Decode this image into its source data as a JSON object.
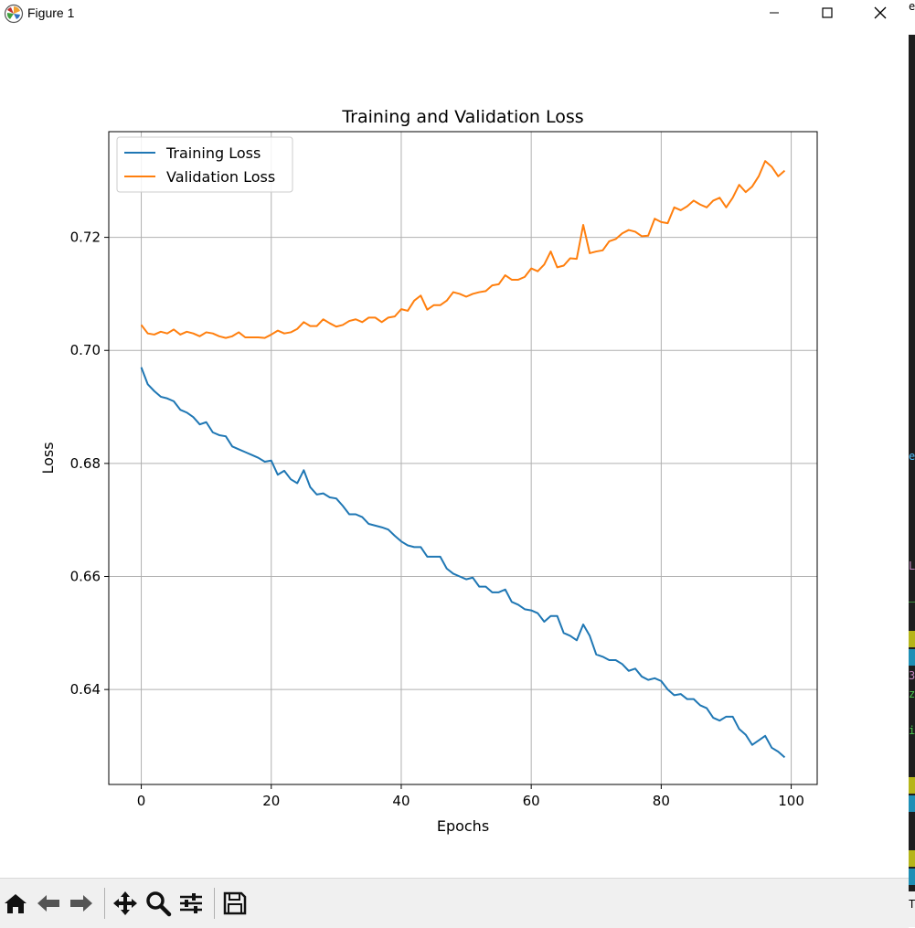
{
  "window": {
    "title": "Figure 1"
  },
  "toolbar": {
    "tools": [
      "home-icon",
      "back-arrow-icon",
      "forward-arrow-icon",
      "pan-icon",
      "zoom-icon",
      "configure-subplots-icon",
      "save-icon"
    ]
  },
  "colors": {
    "training": "#1f77b4",
    "validation": "#ff7f0e",
    "grid": "#b0b0b0"
  },
  "side_strip": {
    "glyphs": [
      "e",
      "e",
      "L",
      "3",
      "z",
      "i",
      "T"
    ]
  },
  "chart_data": {
    "type": "line",
    "title": "Training and Validation Loss",
    "xlabel": "Epochs",
    "ylabel": "Loss",
    "xlim": [
      -5,
      104
    ],
    "ylim": [
      0.6232,
      0.7387
    ],
    "xticks": [
      0,
      20,
      40,
      60,
      80,
      100
    ],
    "yticks": [
      0.64,
      0.66,
      0.68,
      0.7,
      0.72
    ],
    "xtick_labels": [
      "0",
      "20",
      "40",
      "60",
      "80",
      "100"
    ],
    "ytick_labels": [
      "0.64",
      "0.66",
      "0.68",
      "0.70",
      "0.72"
    ],
    "grid": true,
    "legend": "top-left",
    "series": [
      {
        "name": "Training Loss",
        "x": [
          0,
          1,
          2,
          3,
          4,
          5,
          6,
          7,
          8,
          9,
          10,
          11,
          12,
          13,
          14,
          15,
          16,
          17,
          18,
          19,
          20,
          21,
          22,
          23,
          24,
          25,
          26,
          27,
          28,
          29,
          30,
          31,
          32,
          33,
          34,
          35,
          36,
          37,
          38,
          39,
          40,
          41,
          42,
          43,
          44,
          45,
          46,
          47,
          48,
          49,
          50,
          51,
          52,
          53,
          54,
          55,
          56,
          57,
          58,
          59,
          60,
          61,
          62,
          63,
          64,
          65,
          66,
          67,
          68,
          69,
          70,
          71,
          72,
          73,
          74,
          75,
          76,
          77,
          78,
          79,
          80,
          81,
          82,
          83,
          84,
          85,
          86,
          87,
          88,
          89,
          90,
          91,
          92,
          93,
          94,
          95,
          96,
          97,
          98,
          99
        ],
        "values": [
          0.697,
          0.694,
          0.6928,
          0.6918,
          0.6915,
          0.691,
          0.6895,
          0.689,
          0.6882,
          0.6869,
          0.6873,
          0.6855,
          0.685,
          0.6848,
          0.683,
          0.6825,
          0.682,
          0.6815,
          0.681,
          0.6803,
          0.6805,
          0.678,
          0.6787,
          0.6772,
          0.6765,
          0.6788,
          0.6758,
          0.6745,
          0.6747,
          0.674,
          0.6738,
          0.6725,
          0.671,
          0.671,
          0.6705,
          0.6693,
          0.669,
          0.6687,
          0.6683,
          0.6672,
          0.6662,
          0.6655,
          0.6652,
          0.6652,
          0.6635,
          0.6635,
          0.6635,
          0.6614,
          0.6605,
          0.66,
          0.6595,
          0.6598,
          0.6582,
          0.6582,
          0.6572,
          0.6572,
          0.6577,
          0.6555,
          0.655,
          0.6542,
          0.654,
          0.6535,
          0.652,
          0.653,
          0.653,
          0.65,
          0.6495,
          0.6487,
          0.6515,
          0.6495,
          0.6462,
          0.6458,
          0.6452,
          0.6452,
          0.6445,
          0.6433,
          0.6437,
          0.6423,
          0.6417,
          0.642,
          0.6415,
          0.64,
          0.639,
          0.6392,
          0.6383,
          0.6383,
          0.6372,
          0.6367,
          0.635,
          0.6345,
          0.6352,
          0.6352,
          0.633,
          0.632,
          0.6302,
          0.631,
          0.6318,
          0.6297,
          0.629,
          0.628
        ]
      },
      {
        "name": "Validation Loss",
        "x": [
          0,
          1,
          2,
          3,
          4,
          5,
          6,
          7,
          8,
          9,
          10,
          11,
          12,
          13,
          14,
          15,
          16,
          17,
          18,
          19,
          20,
          21,
          22,
          23,
          24,
          25,
          26,
          27,
          28,
          29,
          30,
          31,
          32,
          33,
          34,
          35,
          36,
          37,
          38,
          39,
          40,
          41,
          42,
          43,
          44,
          45,
          46,
          47,
          48,
          49,
          50,
          51,
          52,
          53,
          54,
          55,
          56,
          57,
          58,
          59,
          60,
          61,
          62,
          63,
          64,
          65,
          66,
          67,
          68,
          69,
          70,
          71,
          72,
          73,
          74,
          75,
          76,
          77,
          78,
          79,
          80,
          81,
          82,
          83,
          84,
          85,
          86,
          87,
          88,
          89,
          90,
          91,
          92,
          93,
          94,
          95,
          96,
          97,
          98,
          99
        ],
        "values": [
          0.7045,
          0.703,
          0.7028,
          0.7033,
          0.703,
          0.7037,
          0.7028,
          0.7033,
          0.703,
          0.7025,
          0.7032,
          0.703,
          0.7025,
          0.7022,
          0.7025,
          0.7032,
          0.7023,
          0.7023,
          0.7023,
          0.7022,
          0.7028,
          0.7035,
          0.703,
          0.7032,
          0.7038,
          0.705,
          0.7043,
          0.7043,
          0.7055,
          0.7048,
          0.7042,
          0.7045,
          0.7052,
          0.7055,
          0.705,
          0.7058,
          0.7058,
          0.705,
          0.7058,
          0.706,
          0.7073,
          0.707,
          0.7088,
          0.7097,
          0.7072,
          0.708,
          0.708,
          0.7088,
          0.7103,
          0.71,
          0.7095,
          0.71,
          0.7103,
          0.7105,
          0.7115,
          0.7117,
          0.7133,
          0.7125,
          0.7125,
          0.713,
          0.7145,
          0.714,
          0.7152,
          0.7175,
          0.7147,
          0.715,
          0.7163,
          0.7162,
          0.7222,
          0.7172,
          0.7175,
          0.7177,
          0.7193,
          0.7197,
          0.7207,
          0.7213,
          0.721,
          0.7202,
          0.7203,
          0.7233,
          0.7227,
          0.7225,
          0.7253,
          0.7248,
          0.7255,
          0.7265,
          0.7258,
          0.7253,
          0.7265,
          0.727,
          0.7253,
          0.727,
          0.7293,
          0.728,
          0.729,
          0.7308,
          0.7335,
          0.7325,
          0.7308,
          0.7318
        ]
      }
    ]
  }
}
